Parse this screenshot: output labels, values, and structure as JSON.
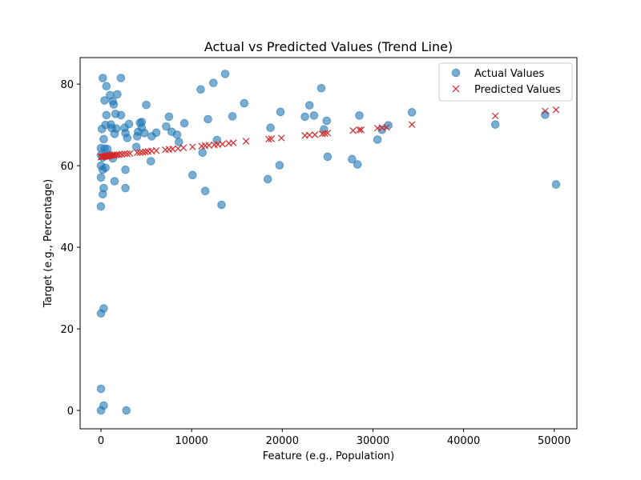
{
  "chart_data": {
    "type": "scatter",
    "title": "Actual vs Predicted Values (Trend Line)",
    "xlabel": "Feature (e.g., Population)",
    "ylabel": "Target (e.g., Percentage)",
    "xlim": [
      -2300,
      52500
    ],
    "ylim": [
      -4.5,
      86.5
    ],
    "xticks": [
      0,
      10000,
      20000,
      30000,
      40000,
      50000
    ],
    "yticks": [
      0,
      20,
      40,
      60,
      80
    ],
    "grid": false,
    "legend_position": "top-right",
    "series": [
      {
        "name": "Actual Values",
        "marker": "circle",
        "color": "#1f77b4",
        "points": [
          [
            0,
            0
          ],
          [
            0,
            5.3
          ],
          [
            0,
            23.8
          ],
          [
            300,
            25
          ],
          [
            300,
            1.2
          ],
          [
            2800,
            0
          ],
          [
            0,
            50
          ],
          [
            0,
            57.1
          ],
          [
            200,
            53
          ],
          [
            300,
            54.5
          ],
          [
            200,
            59
          ],
          [
            0,
            60
          ],
          [
            500,
            59.5
          ],
          [
            0,
            62.6
          ],
          [
            200,
            62
          ],
          [
            400,
            64.2
          ],
          [
            0,
            64.3
          ],
          [
            300,
            66.5
          ],
          [
            700,
            64.1
          ],
          [
            100,
            69
          ],
          [
            500,
            70
          ],
          [
            600,
            72.4
          ],
          [
            400,
            76
          ],
          [
            200,
            81.5
          ],
          [
            600,
            79.5
          ],
          [
            1000,
            62.6
          ],
          [
            1300,
            61.8
          ],
          [
            1500,
            56.2
          ],
          [
            1200,
            69.2
          ],
          [
            1100,
            70.1
          ],
          [
            1000,
            77.3
          ],
          [
            1400,
            75
          ],
          [
            1300,
            75.8
          ],
          [
            1600,
            72.7
          ],
          [
            1700,
            69.1
          ],
          [
            1500,
            67.8
          ],
          [
            1800,
            77.5
          ],
          [
            2200,
            81.5
          ],
          [
            2200,
            72.4
          ],
          [
            2600,
            69.3
          ],
          [
            2700,
            68
          ],
          [
            2900,
            66.8
          ],
          [
            2700,
            59
          ],
          [
            2700,
            54.5
          ],
          [
            3100,
            70.2
          ],
          [
            3900,
            64.6
          ],
          [
            4000,
            67.2
          ],
          [
            4100,
            68.3
          ],
          [
            4300,
            70.5
          ],
          [
            4500,
            70.7
          ],
          [
            4500,
            69.3
          ],
          [
            4800,
            68
          ],
          [
            5000,
            74.9
          ],
          [
            5500,
            61.1
          ],
          [
            5600,
            67.2
          ],
          [
            6100,
            68.1
          ],
          [
            7200,
            69.6
          ],
          [
            7500,
            72
          ],
          [
            7800,
            68.3
          ],
          [
            8400,
            67.6
          ],
          [
            8600,
            65.8
          ],
          [
            9200,
            70.4
          ],
          [
            10100,
            57.7
          ],
          [
            11000,
            78.7
          ],
          [
            11200,
            63.2
          ],
          [
            11500,
            53.8
          ],
          [
            11800,
            71.4
          ],
          [
            12400,
            80.3
          ],
          [
            12800,
            66.3
          ],
          [
            13300,
            50.4
          ],
          [
            13700,
            82.5
          ],
          [
            14500,
            72.1
          ],
          [
            15800,
            75.3
          ],
          [
            18400,
            56.7
          ],
          [
            18700,
            69.3
          ],
          [
            19700,
            60.1
          ],
          [
            19800,
            73.2
          ],
          [
            22500,
            72
          ],
          [
            23000,
            74.8
          ],
          [
            23500,
            72.3
          ],
          [
            24300,
            79
          ],
          [
            24600,
            68.9
          ],
          [
            24900,
            71
          ],
          [
            25000,
            62.2
          ],
          [
            27700,
            61.6
          ],
          [
            28300,
            60.3
          ],
          [
            28500,
            72.3
          ],
          [
            30500,
            66.4
          ],
          [
            31000,
            68.8
          ],
          [
            31700,
            69.9
          ],
          [
            34300,
            73.1
          ],
          [
            43500,
            70.1
          ],
          [
            49000,
            72.5
          ],
          [
            50200,
            55.4
          ]
        ]
      },
      {
        "name": "Predicted Values",
        "marker": "x",
        "color": "#d62728",
        "points": [
          [
            0,
            62.1
          ],
          [
            100,
            62.2
          ],
          [
            200,
            62.2
          ],
          [
            300,
            62.2
          ],
          [
            400,
            62.3
          ],
          [
            500,
            62.3
          ],
          [
            600,
            62.3
          ],
          [
            700,
            62.4
          ],
          [
            800,
            62.4
          ],
          [
            900,
            62.4
          ],
          [
            1000,
            62.5
          ],
          [
            1200,
            62.5
          ],
          [
            1400,
            62.6
          ],
          [
            1600,
            62.6
          ],
          [
            1800,
            62.7
          ],
          [
            2000,
            62.7
          ],
          [
            2300,
            62.8
          ],
          [
            2600,
            62.9
          ],
          [
            2900,
            62.9
          ],
          [
            3200,
            63
          ],
          [
            4000,
            63.2
          ],
          [
            4300,
            63.2
          ],
          [
            4600,
            63.3
          ],
          [
            4900,
            63.4
          ],
          [
            5200,
            63.5
          ],
          [
            5600,
            63.6
          ],
          [
            6100,
            63.7
          ],
          [
            7100,
            63.9
          ],
          [
            7500,
            64
          ],
          [
            7900,
            64.1
          ],
          [
            8500,
            64.2
          ],
          [
            9100,
            64.4
          ],
          [
            10100,
            64.6
          ],
          [
            11100,
            64.8
          ],
          [
            11500,
            64.9
          ],
          [
            11900,
            65
          ],
          [
            12500,
            65.1
          ],
          [
            12900,
            65.2
          ],
          [
            13400,
            65.3
          ],
          [
            14100,
            65.5
          ],
          [
            14600,
            65.6
          ],
          [
            16000,
            66
          ],
          [
            18500,
            66.5
          ],
          [
            18800,
            66.6
          ],
          [
            19900,
            66.8
          ],
          [
            22500,
            67.4
          ],
          [
            23000,
            67.5
          ],
          [
            23600,
            67.6
          ],
          [
            24400,
            67.8
          ],
          [
            24700,
            67.9
          ],
          [
            25000,
            68
          ],
          [
            27800,
            68.6
          ],
          [
            28500,
            68.8
          ],
          [
            28700,
            68.8
          ],
          [
            30500,
            69.2
          ],
          [
            31000,
            69.3
          ],
          [
            31500,
            69.4
          ],
          [
            34300,
            70.1
          ],
          [
            43500,
            72.2
          ],
          [
            49000,
            73.4
          ],
          [
            50200,
            73.7
          ]
        ]
      }
    ]
  }
}
